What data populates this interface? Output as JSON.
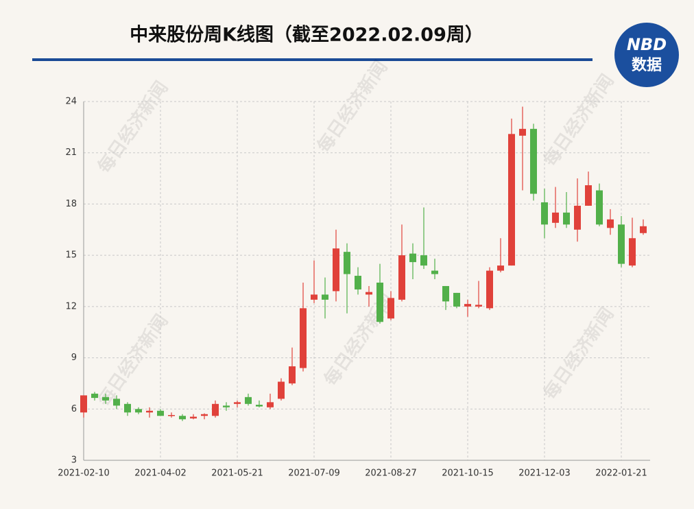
{
  "chart_data": {
    "type": "candlestick",
    "title": "中来股份周K线图（截至2022.02.09周）",
    "categories": [
      "2021-02-10",
      null,
      null,
      null,
      null,
      null,
      null,
      "2021-04-02",
      null,
      null,
      null,
      null,
      null,
      null,
      "2021-05-21",
      null,
      null,
      null,
      null,
      null,
      null,
      "2021-07-09",
      null,
      null,
      null,
      null,
      null,
      null,
      "2021-08-27",
      null,
      null,
      null,
      null,
      null,
      null,
      "2021-10-15",
      null,
      null,
      null,
      null,
      null,
      null,
      "2021-12-03",
      null,
      null,
      null,
      null,
      null,
      null,
      "2022-01-21",
      null,
      null
    ],
    "open": [
      5.8,
      6.9,
      6.7,
      6.6,
      6.3,
      6.0,
      5.8,
      5.9,
      5.6,
      5.6,
      5.45,
      5.6,
      5.6,
      6.2,
      6.3,
      6.7,
      6.25,
      6.1,
      6.6,
      7.5,
      8.4,
      12.4,
      12.7,
      12.9,
      15.2,
      13.8,
      12.7,
      13.4,
      11.3,
      12.4,
      15.1,
      15.0,
      14.1,
      13.2,
      12.8,
      12.0,
      12.0,
      11.9,
      14.1,
      14.4,
      22.0,
      22.4,
      18.1,
      16.9,
      17.5,
      16.5,
      17.9,
      18.8,
      16.6,
      16.8,
      14.4,
      16.3
    ],
    "high": [
      6.8,
      7.0,
      6.9,
      6.8,
      6.4,
      6.1,
      6.1,
      6.0,
      5.8,
      5.7,
      5.7,
      5.75,
      6.5,
      6.4,
      6.5,
      6.9,
      6.5,
      6.9,
      7.8,
      9.6,
      13.4,
      14.7,
      13.7,
      16.5,
      15.7,
      14.3,
      13.2,
      14.5,
      12.9,
      16.8,
      15.7,
      17.8,
      14.8,
      13.2,
      12.8,
      12.4,
      13.5,
      14.3,
      16.0,
      23.0,
      23.7,
      22.7,
      18.9,
      19.0,
      18.7,
      19.5,
      19.9,
      19.2,
      17.7,
      17.3,
      17.2,
      17.1
    ],
    "low": [
      5.5,
      6.5,
      6.3,
      6.0,
      5.6,
      5.7,
      5.5,
      5.6,
      5.5,
      5.3,
      5.4,
      5.4,
      5.5,
      5.9,
      6.1,
      6.2,
      6.1,
      6.0,
      6.5,
      7.4,
      8.2,
      12.2,
      11.3,
      12.3,
      11.6,
      12.7,
      12.0,
      11.0,
      11.2,
      12.3,
      13.6,
      14.2,
      13.6,
      11.8,
      11.9,
      11.4,
      11.9,
      11.8,
      14.0,
      14.4,
      18.8,
      18.2,
      16.0,
      16.6,
      16.6,
      15.8,
      17.9,
      16.7,
      16.2,
      14.3,
      14.3,
      16.2
    ],
    "close": [
      6.8,
      6.65,
      6.5,
      6.2,
      5.8,
      5.8,
      5.9,
      5.6,
      5.65,
      5.4,
      5.55,
      5.7,
      6.3,
      6.1,
      6.4,
      6.3,
      6.15,
      6.4,
      7.6,
      8.5,
      11.9,
      12.7,
      12.4,
      15.4,
      13.9,
      13.0,
      12.85,
      11.1,
      12.5,
      15.0,
      14.6,
      14.4,
      13.9,
      12.3,
      12.0,
      12.15,
      12.1,
      14.1,
      14.4,
      22.1,
      22.4,
      18.6,
      16.8,
      17.5,
      16.8,
      17.9,
      19.1,
      16.8,
      17.1,
      14.5,
      16.0,
      16.7
    ],
    "up_color": "#e0413a",
    "down_color": "#52b04a",
    "ylim": [
      3,
      24
    ],
    "yticks": [
      3,
      6,
      9,
      12,
      15,
      18,
      21,
      24
    ],
    "grid": true
  },
  "logo": {
    "line1": "NBD",
    "line2": "数据"
  },
  "watermark": "每日经济新闻"
}
